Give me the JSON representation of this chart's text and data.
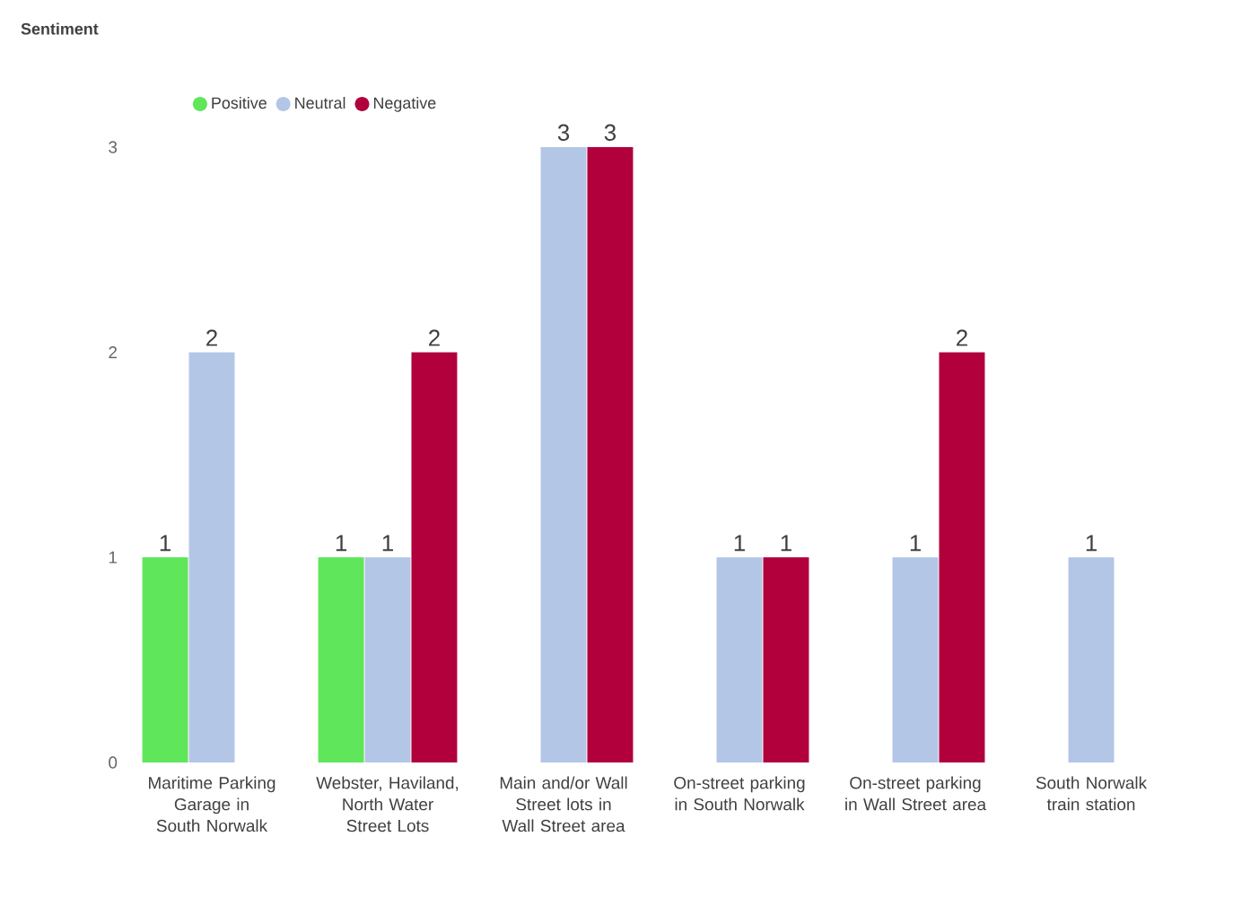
{
  "chart_data": {
    "type": "bar",
    "legend_title": "Sentiment",
    "legend": "top left",
    "data_labels": true,
    "grid": false,
    "categories": [
      "Maritime Parking Garage in South Norwalk",
      "Webster, Haviland, North Water Street Lots",
      "Main and/or Wall Street lots in Wall Street area",
      "On-street parking in South Norwalk",
      "On-street parking in Wall Street area",
      "South Norwalk train station"
    ],
    "series": [
      {
        "name": "Positive",
        "color": "#5fe65a",
        "values": [
          1,
          1,
          null,
          null,
          null,
          null
        ]
      },
      {
        "name": "Neutral",
        "color": "#b4c6e6",
        "values": [
          2,
          1,
          3,
          1,
          1,
          1
        ]
      },
      {
        "name": "Negative",
        "color": "#b1003b",
        "values": [
          null,
          2,
          3,
          1,
          2,
          null
        ]
      }
    ],
    "ylim": [
      0,
      3
    ],
    "yticks": [
      0,
      1,
      2,
      3
    ]
  }
}
